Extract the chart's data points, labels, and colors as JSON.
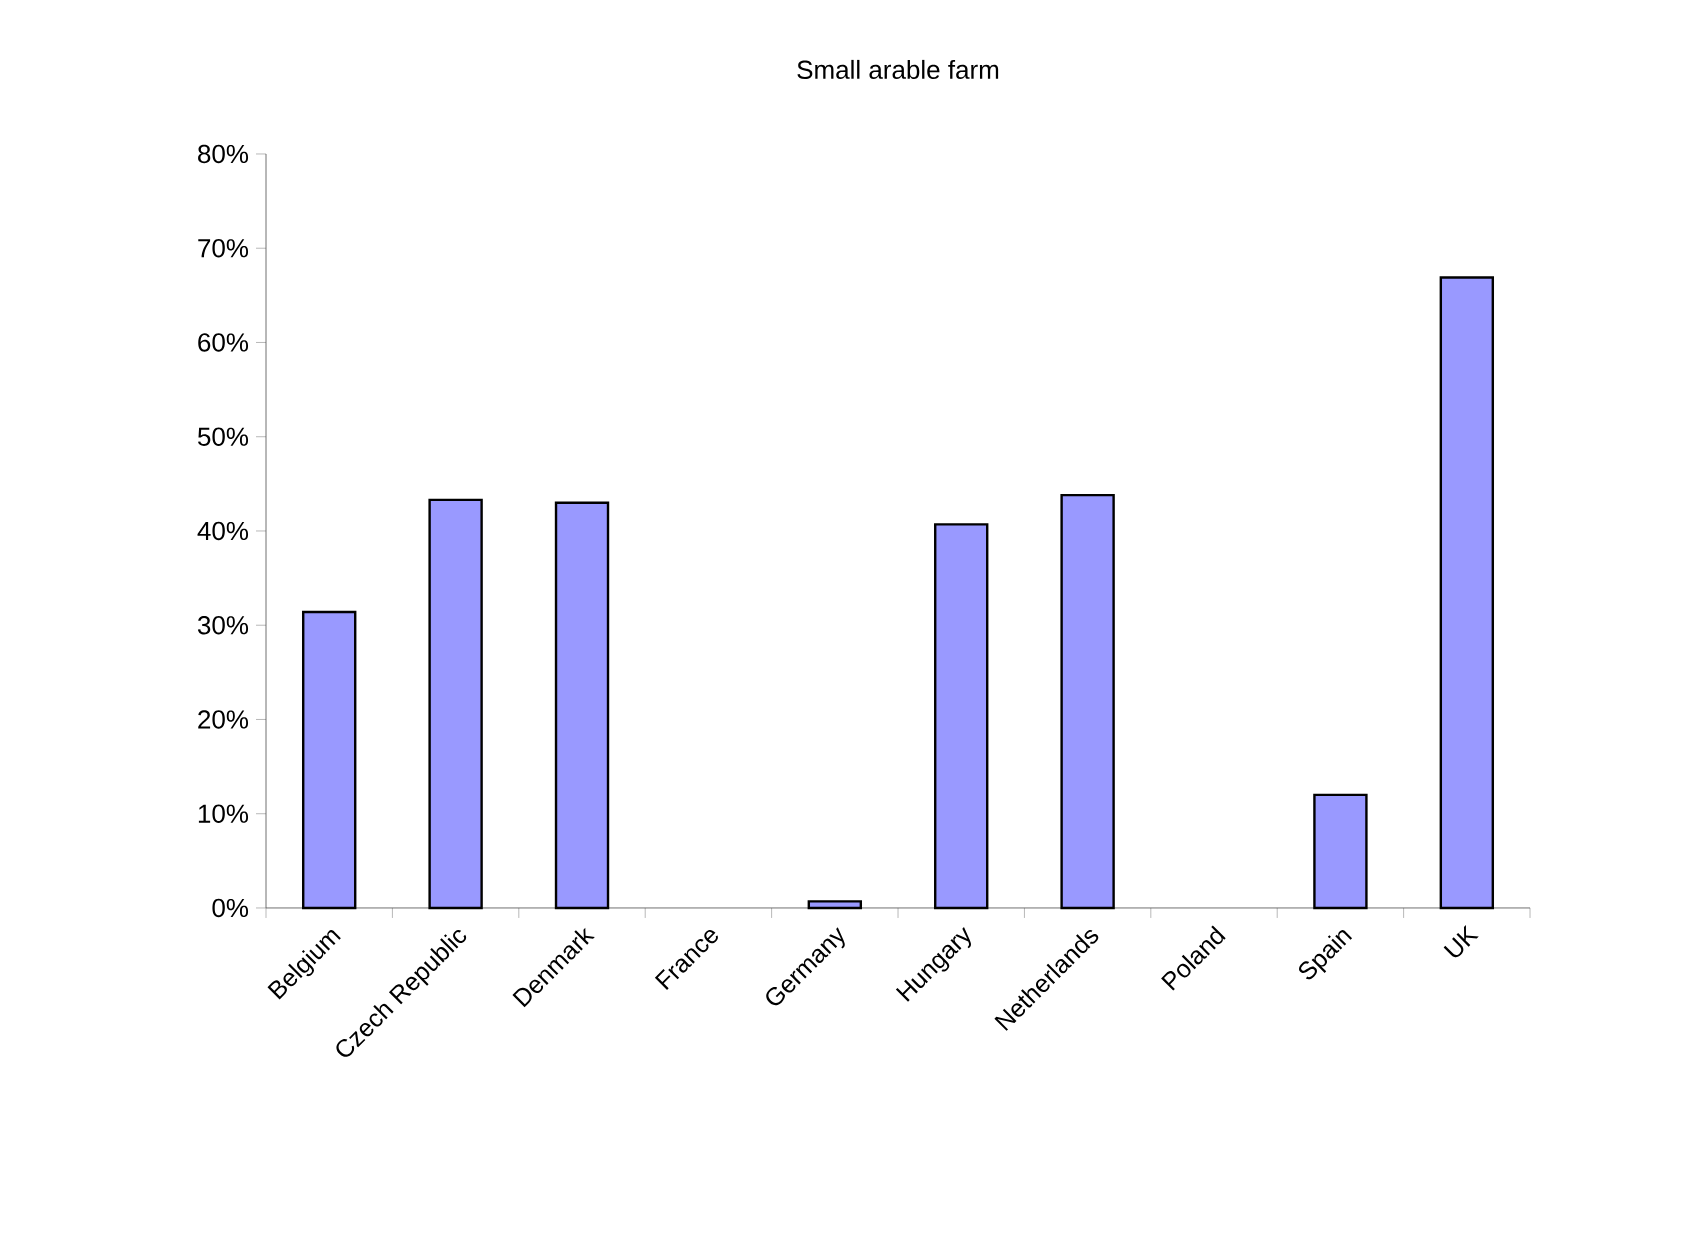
{
  "chart_data": {
    "type": "bar",
    "title": "Small arable farm",
    "categories": [
      "Belgium",
      "Czech Republic",
      "Denmark",
      "France",
      "Germany",
      "Hungary",
      "Netherlands",
      "Poland",
      "Spain",
      "UK"
    ],
    "values": [
      31.4,
      43.3,
      43.0,
      null,
      0.7,
      40.7,
      43.8,
      null,
      12.0,
      66.9
    ],
    "color": "#9999ff",
    "ylim": [
      0,
      80
    ],
    "yticks": [
      {
        "value": 0,
        "label": "0%"
      },
      {
        "value": 10,
        "label": "10%"
      },
      {
        "value": 20,
        "label": "20%"
      },
      {
        "value": 30,
        "label": "30%"
      },
      {
        "value": 40,
        "label": "40%"
      },
      {
        "value": 50,
        "label": "50%"
      },
      {
        "value": 60,
        "label": "60%"
      },
      {
        "value": 70,
        "label": "70%"
      },
      {
        "value": 80,
        "label": "80%"
      }
    ]
  }
}
